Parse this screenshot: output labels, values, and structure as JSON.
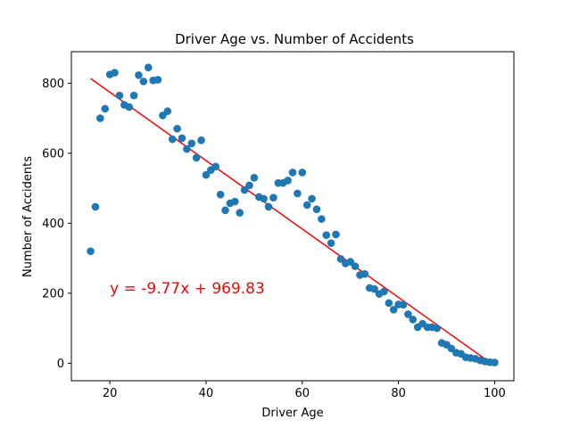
{
  "chart_data": {
    "type": "scatter",
    "title": "Driver Age vs. Number of Accidents",
    "xlabel": "Driver Age",
    "ylabel": "Number of Accidents",
    "xlim": [
      12,
      104
    ],
    "ylim": [
      -50,
      890
    ],
    "xticks": [
      20,
      40,
      60,
      80,
      100
    ],
    "yticks": [
      0,
      200,
      400,
      600,
      800
    ],
    "grid": false,
    "point_color": "#1f77b4",
    "fit_color": "#ff0000",
    "series": [
      {
        "x": [
          16,
          17,
          18,
          19,
          20,
          21,
          22,
          23,
          24,
          25,
          26,
          27,
          28,
          29,
          30,
          31,
          32,
          33,
          34,
          35,
          36,
          37,
          38,
          39,
          40,
          41,
          42,
          43,
          44,
          45,
          46,
          47,
          48,
          49,
          50,
          51,
          52,
          53,
          54,
          55,
          56,
          57,
          58,
          59,
          60,
          61,
          62,
          63,
          64,
          65,
          66,
          67,
          68,
          69,
          70,
          71,
          72,
          73,
          74,
          75,
          76,
          77,
          78,
          79,
          80,
          81,
          82,
          83,
          84,
          85,
          86,
          87,
          88,
          89,
          90,
          91,
          92,
          93,
          94,
          95,
          96,
          97,
          98,
          99,
          100
        ],
        "y": [
          320,
          447,
          700,
          727,
          825,
          830,
          765,
          738,
          732,
          765,
          823,
          805,
          845,
          808,
          810,
          708,
          720,
          640,
          670,
          643,
          612,
          628,
          587,
          637,
          538,
          552,
          562,
          482,
          437,
          457,
          462,
          430,
          495,
          508,
          530,
          475,
          470,
          447,
          473,
          515,
          515,
          522,
          545,
          485,
          545,
          452,
          470,
          440,
          412,
          366,
          343,
          368,
          298,
          285,
          290,
          277,
          252,
          255,
          215,
          212,
          198,
          205,
          172,
          153,
          168,
          167,
          140,
          125,
          103,
          113,
          103,
          103,
          100,
          58,
          53,
          42,
          30,
          27,
          17,
          15,
          13,
          8,
          5,
          3,
          2
        ]
      }
    ],
    "fit_line": {
      "slope": -9.77,
      "intercept": 969.83,
      "x_range": [
        16,
        100
      ]
    },
    "annotation": {
      "text": "y = -9.77x + 969.83",
      "x": 20,
      "y": 200,
      "color": "#ff0000"
    }
  }
}
